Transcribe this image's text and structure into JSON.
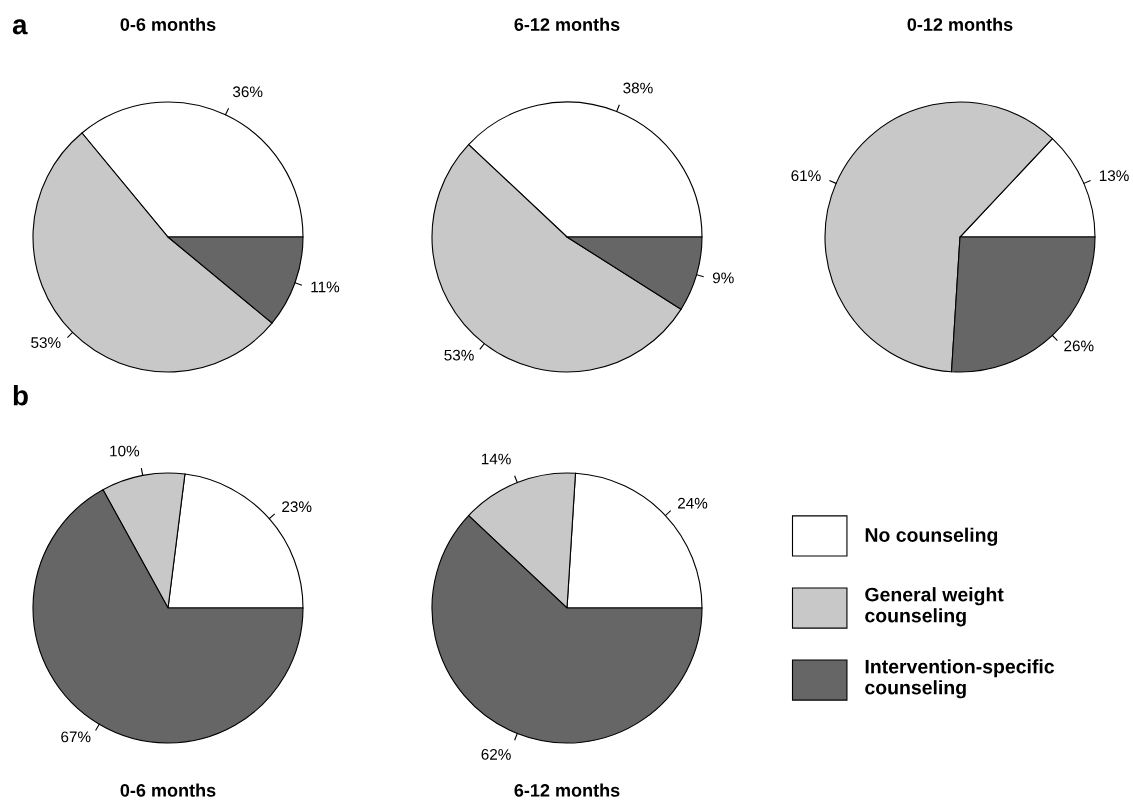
{
  "chart_data": [
    {
      "type": "pie",
      "title": "0-6 months",
      "annotations": [
        "a"
      ],
      "categories": [
        "No counseling",
        "General weight\ncounseling",
        "Intervention-specific\ncounseling"
      ],
      "values": [
        36,
        53,
        11
      ],
      "value_labels": [
        "36%",
        "53%",
        "11%"
      ],
      "colors": [
        "#ffffff",
        "#c8c8c8",
        "#666666"
      ],
      "legend": "right"
    },
    {
      "type": "pie",
      "title": "6-12 months",
      "categories": [
        null,
        null,
        null
      ],
      "values": [
        38,
        53,
        9
      ],
      "value_labels": [
        "38%",
        "53%",
        "9%"
      ],
      "colors": [
        "#ffffff",
        "#c8c8c8",
        "#666666"
      ],
      "legend": false
    },
    {
      "type": "pie",
      "title": "0-12 months",
      "categories": [
        null,
        null,
        null
      ],
      "values": [
        13,
        61,
        26
      ],
      "value_labels": [
        "13%",
        "61%",
        "26%"
      ],
      "colors": [
        "#ffffff",
        "#c8c8c8",
        "#666666"
      ],
      "legend": false
    },
    {
      "type": "pie",
      "title": "0-6 months",
      "annotations": [
        "b"
      ],
      "categories": [
        null,
        null,
        null
      ],
      "values": [
        23,
        10,
        67
      ],
      "value_labels": [
        "23%",
        "10%",
        "67%"
      ],
      "colors": [
        "#ffffff",
        "#c8c8c8",
        "#666666"
      ],
      "legend": false
    },
    {
      "type": "pie",
      "title": "6-12 months",
      "categories": [
        null,
        null,
        null
      ],
      "values": [
        24,
        14,
        62
      ],
      "value_labels": [
        "24%",
        "14%",
        "62%"
      ],
      "colors": [
        "#ffffff",
        "#c8c8c8",
        "#666666"
      ],
      "legend": false
    }
  ]
}
